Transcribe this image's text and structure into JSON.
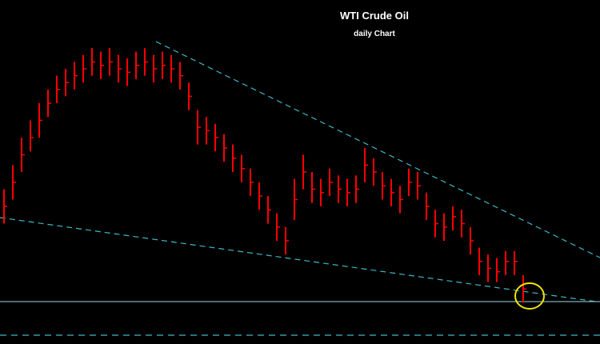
{
  "chart_data": {
    "type": "ohlc",
    "title": "WTI Crude Oil",
    "subtitle": "daily Chart",
    "color": "#ff0000",
    "ylim": [
      0,
      100
    ],
    "high": [
      45,
      52,
      60,
      65,
      70,
      74,
      78,
      80,
      82,
      84,
      86,
      85,
      86,
      84,
      83,
      85,
      86,
      84,
      85,
      84,
      82,
      76,
      68,
      66,
      64,
      61,
      58,
      55,
      51,
      47,
      43,
      38,
      34,
      48,
      55,
      50,
      48,
      51,
      49,
      48,
      49,
      57,
      54,
      50,
      48,
      46,
      51,
      50,
      44,
      39,
      38,
      40,
      39,
      34,
      28,
      26,
      25,
      27,
      27,
      20
    ],
    "low": [
      35,
      42,
      50,
      56,
      60,
      66,
      70,
      72,
      74,
      76,
      78,
      77,
      78,
      76,
      75,
      77,
      78,
      76,
      77,
      76,
      74,
      68,
      58,
      58,
      56,
      53,
      50,
      47,
      43,
      39,
      35,
      30,
      26,
      36,
      45,
      41,
      40,
      43,
      41,
      40,
      41,
      47,
      46,
      42,
      40,
      38,
      43,
      42,
      36,
      31,
      30,
      33,
      31,
      26,
      20,
      18,
      18,
      20,
      20,
      12
    ],
    "close": [
      40,
      47,
      55,
      60,
      65,
      70,
      74,
      76,
      78,
      80,
      82,
      81,
      82,
      80,
      79,
      81,
      82,
      80,
      81,
      80,
      78,
      72,
      63,
      62,
      60,
      57,
      54,
      51,
      47,
      43,
      39,
      34,
      30,
      42,
      50,
      45,
      44,
      47,
      45,
      44,
      45,
      52,
      50,
      46,
      44,
      42,
      47,
      46,
      40,
      35,
      34,
      37,
      35,
      30,
      24,
      22,
      21,
      24,
      24,
      16
    ]
  }
}
